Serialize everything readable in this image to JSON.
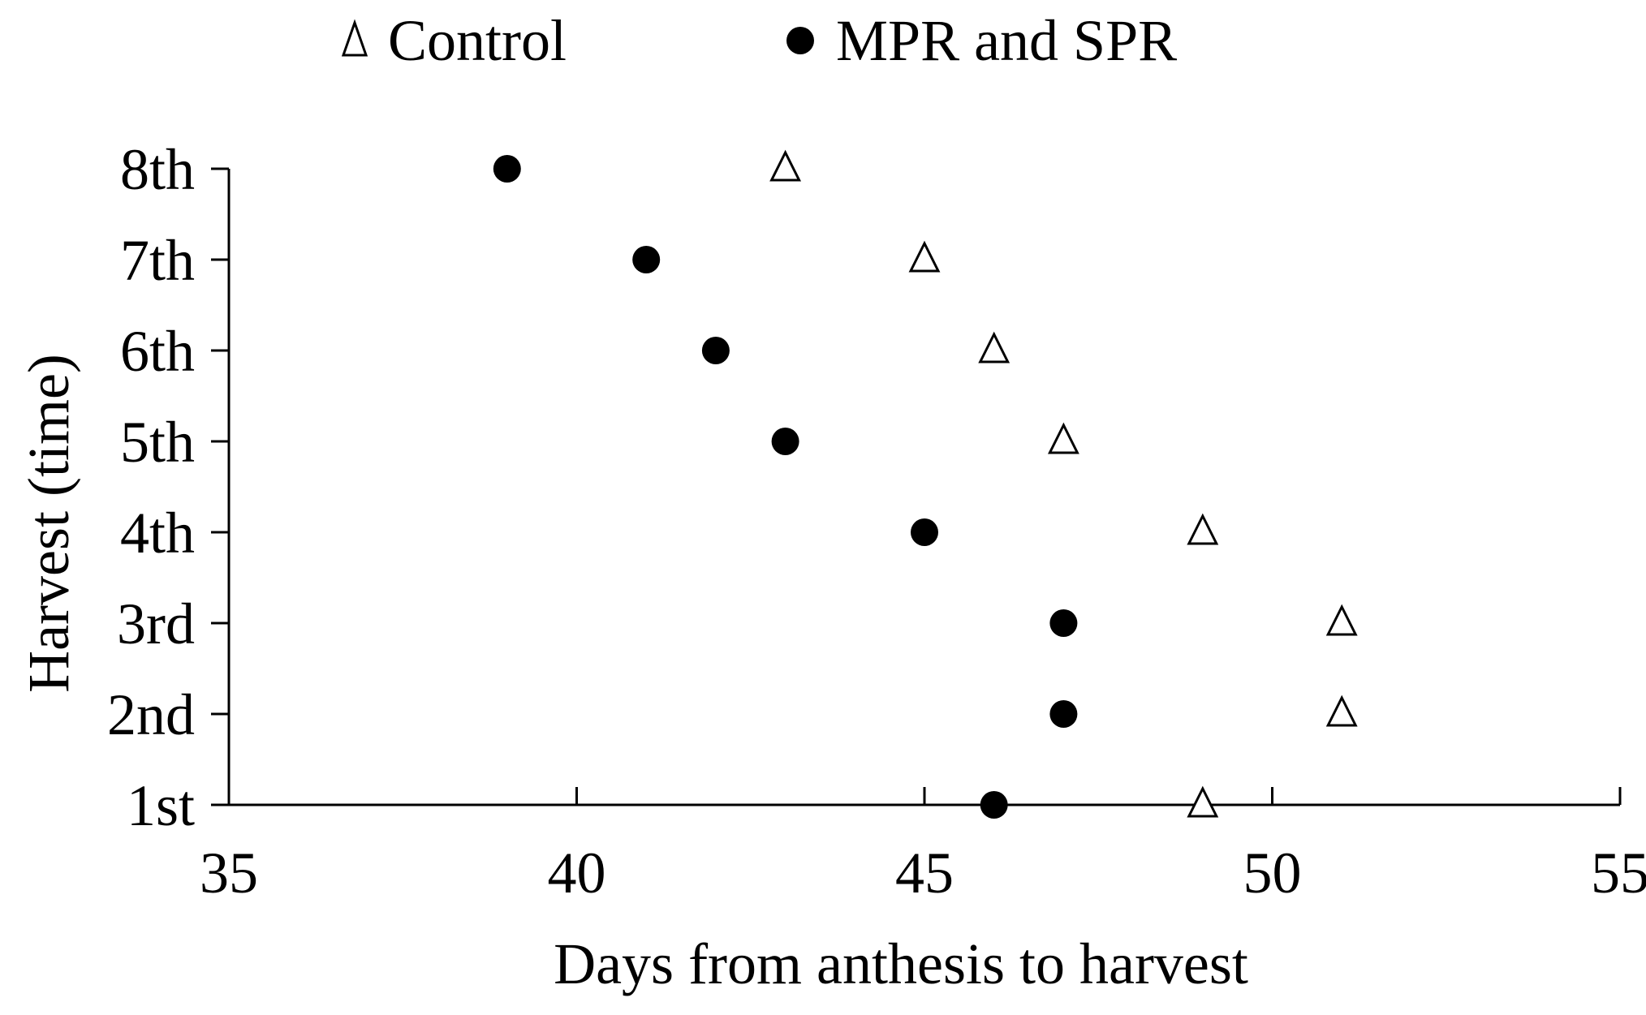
{
  "chart_data": {
    "type": "scatter",
    "title": "",
    "xlabel": "Days from anthesis to harvest",
    "ylabel": "Harvest (time)",
    "xlim": [
      35,
      55
    ],
    "xticks": [
      35,
      40,
      45,
      50,
      55
    ],
    "xtick_labels": [
      "35",
      "40",
      "45",
      "50",
      "55"
    ],
    "categories": [
      "1st",
      "2nd",
      "3rd",
      "4th",
      "5th",
      "6th",
      "7th",
      "8th"
    ],
    "grid": false,
    "legend_position": "top",
    "series": [
      {
        "name": "Control",
        "marker": "open-triangle",
        "color": "#000000",
        "values": [
          49,
          51,
          51,
          49,
          47,
          46,
          45,
          43
        ]
      },
      {
        "name": "MPR and SPR",
        "marker": "filled-circle",
        "color": "#000000",
        "values": [
          46,
          47,
          47,
          45,
          43,
          42,
          41,
          39
        ]
      }
    ]
  }
}
